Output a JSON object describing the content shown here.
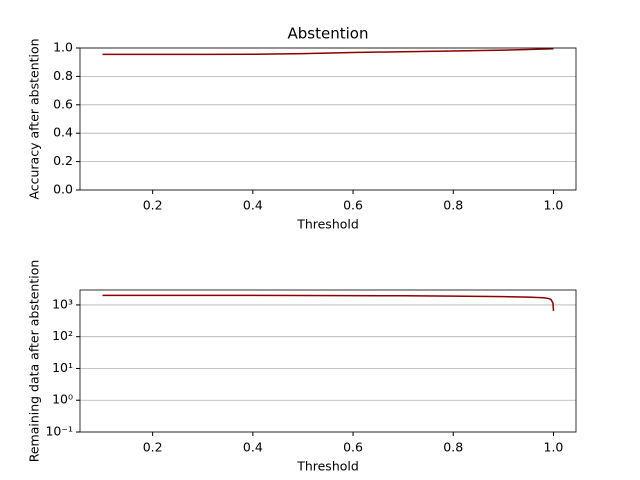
{
  "chart_data": [
    {
      "type": "line",
      "title": "Abstention",
      "x_label": "Threshold",
      "y_label": "Accuracy after abstention",
      "x": [
        0.1,
        0.2,
        0.3,
        0.4,
        0.5,
        0.6,
        0.7,
        0.8,
        0.9,
        0.95,
        1.0
      ],
      "values": [
        0.955,
        0.955,
        0.955,
        0.956,
        0.96,
        0.968,
        0.974,
        0.979,
        0.985,
        0.989,
        0.995
      ],
      "color": "#8b0000",
      "xlim": [
        0.055,
        1.045
      ],
      "ylim": [
        0,
        1
      ],
      "xticks": [
        0.2,
        0.4,
        0.6,
        0.8,
        {
          "value": 1,
          "label": "1.0"
        }
      ],
      "yticks": [
        {
          "value": 0,
          "label": "0.0"
        },
        0.2,
        0.4,
        0.6,
        0.8,
        {
          "value": 1,
          "label": "1.0"
        }
      ],
      "grid": true,
      "log_y": false
    },
    {
      "type": "line",
      "x_label": "Threshold",
      "y_label": "Remaining data after abstention",
      "x": [
        0.1,
        0.3,
        0.5,
        0.7,
        0.8,
        0.9,
        0.95,
        0.98,
        0.99,
        0.995,
        0.999,
        1.0
      ],
      "values": [
        2000,
        2000,
        1980,
        1940,
        1900,
        1830,
        1760,
        1680,
        1600,
        1480,
        1150,
        650
      ],
      "color": "#8b0000",
      "xlim": [
        0.055,
        1.045
      ],
      "ylim": [
        0.1,
        2950
      ],
      "xticks": [
        0.2,
        0.4,
        0.6,
        0.8,
        {
          "value": 1,
          "label": "1.0"
        }
      ],
      "yticks": [
        {
          "value": 0.1,
          "label": "10⁻¹"
        },
        {
          "value": 1,
          "label": "10⁰"
        },
        {
          "value": 10,
          "label": "10¹"
        },
        {
          "value": 100,
          "label": "10²"
        },
        {
          "value": 1000,
          "label": "10³"
        }
      ],
      "grid": true,
      "log_y": true
    }
  ]
}
